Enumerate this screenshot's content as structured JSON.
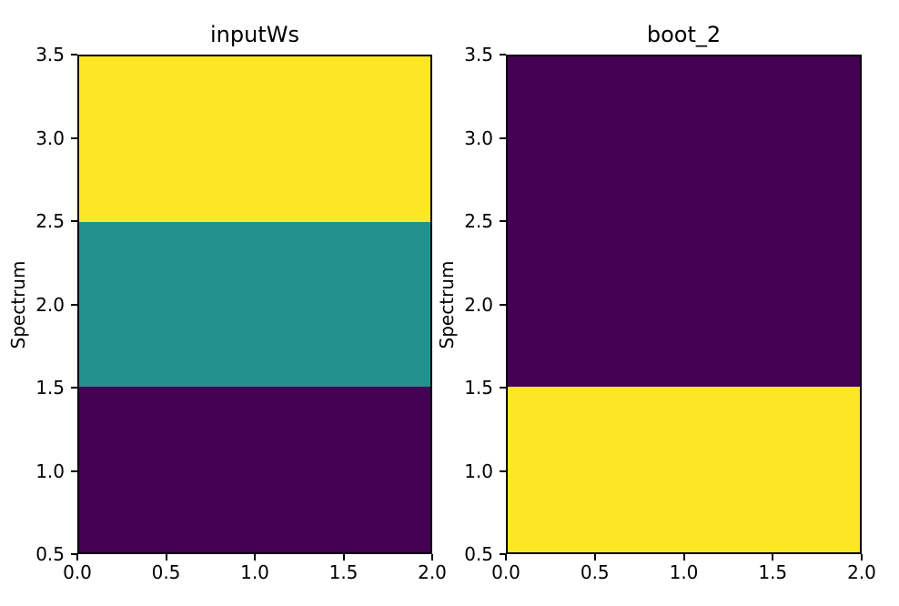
{
  "figure": {
    "background": "#ffffff",
    "text_color": "#000000"
  },
  "chart_data": [
    {
      "type": "heatmap",
      "title": "inputWs",
      "xlabel": "",
      "ylabel": "Spectrum",
      "xlim": [
        0.0,
        2.0
      ],
      "ylim": [
        0.5,
        3.5
      ],
      "xticks": [
        0.0,
        0.5,
        1.0,
        1.5,
        2.0
      ],
      "yticks": [
        0.5,
        1.0,
        1.5,
        2.0,
        2.5,
        3.0,
        3.5
      ],
      "colormap": "viridis",
      "grid": false,
      "legend": null,
      "bands": [
        {
          "y_from": 2.5,
          "y_to": 3.5,
          "norm_value": 1.0,
          "color": "#fde725"
        },
        {
          "y_from": 1.5,
          "y_to": 2.5,
          "norm_value": 0.5,
          "color": "#21918c"
        },
        {
          "y_from": 0.5,
          "y_to": 1.5,
          "norm_value": 0.0,
          "color": "#440154"
        }
      ]
    },
    {
      "type": "heatmap",
      "title": "boot_2",
      "xlabel": "",
      "ylabel": "Spectrum",
      "xlim": [
        0.0,
        2.0
      ],
      "ylim": [
        0.5,
        3.5
      ],
      "xticks": [
        0.0,
        0.5,
        1.0,
        1.5,
        2.0
      ],
      "yticks": [
        0.5,
        1.0,
        1.5,
        2.0,
        2.5,
        3.0,
        3.5
      ],
      "colormap": "viridis",
      "grid": false,
      "legend": null,
      "bands": [
        {
          "y_from": 1.5,
          "y_to": 3.5,
          "norm_value": 0.0,
          "color": "#440154"
        },
        {
          "y_from": 0.5,
          "y_to": 1.5,
          "norm_value": 1.0,
          "color": "#fde725"
        }
      ]
    }
  ]
}
